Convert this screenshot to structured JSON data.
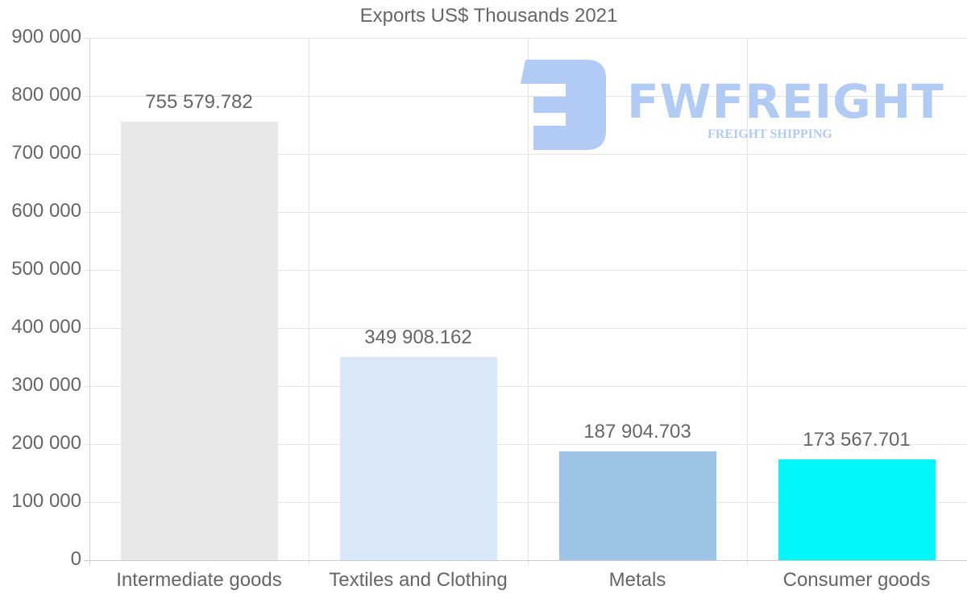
{
  "chart_data": {
    "type": "bar",
    "title": "Exports US$ Thousands 2021",
    "xlabel": "",
    "ylabel": "",
    "categories": [
      "Intermediate goods",
      "Textiles and Clothing",
      "Metals",
      "Consumer goods"
    ],
    "values": [
      755579.782,
      349908.162,
      187904.703,
      173567.701
    ],
    "value_labels": [
      "755 579.782",
      "349 908.162",
      "187 904.703",
      "173 567.701"
    ],
    "colors": [
      "#e8e8e8",
      "#d8e8f8",
      "#9bc3e6",
      "#00f8f8"
    ],
    "ylim": [
      0,
      900000
    ],
    "yticks": [
      0,
      100000,
      200000,
      300000,
      400000,
      500000,
      600000,
      700000,
      800000,
      900000
    ],
    "ytick_labels": [
      "0",
      "100 000",
      "200 000",
      "300 000",
      "400 000",
      "500 000",
      "600 000",
      "700 000",
      "800 000",
      "900 000"
    ],
    "grid": true,
    "legend": null
  },
  "watermark": {
    "brand": "FWFREIGHT",
    "tagline": "FREIGHT SHIPPING",
    "color": "#b2cbf5"
  }
}
